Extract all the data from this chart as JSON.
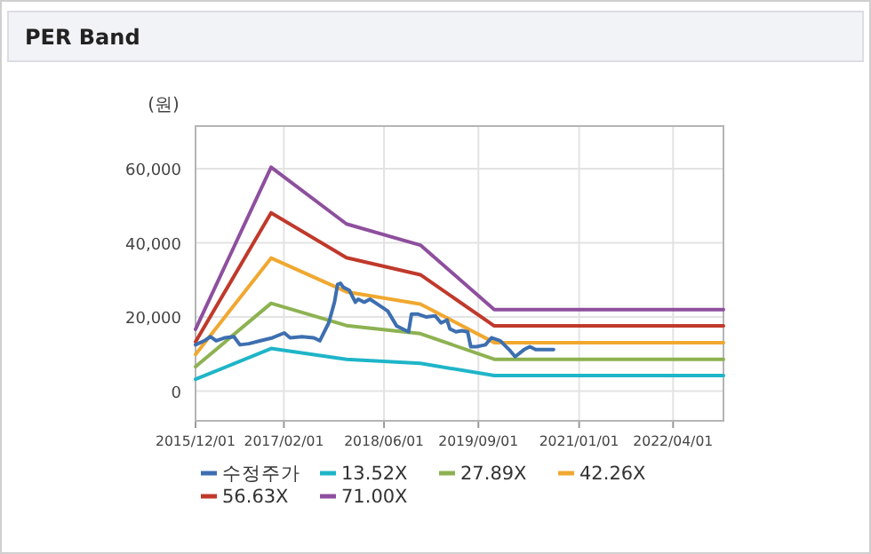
{
  "chart_data": {
    "type": "line",
    "title": "PER Band",
    "ylabel": "(원)",
    "xlim": [
      "2015-12-01",
      "2022-12-01"
    ],
    "xticks": [
      {
        "value": "2015-12-01",
        "label": "2015/12/01"
      },
      {
        "value": "2017-02-01",
        "label": "2017/02/01"
      },
      {
        "value": "2018-06-01",
        "label": "2018/06/01"
      },
      {
        "value": "2019-09-01",
        "label": "2019/09/01"
      },
      {
        "value": "2021-01-01",
        "label": "2021/01/01"
      },
      {
        "value": "2022-04-01",
        "label": "2022/04/01"
      }
    ],
    "ylim": [
      -8000,
      71500
    ],
    "yticks": [
      0,
      {
        "value": 20000,
        "label": "20,000"
      },
      {
        "value": 40000,
        "label": "40,000"
      },
      {
        "value": 60000,
        "label": "60,000"
      }
    ],
    "grid": true,
    "legend": "bottom",
    "marker": "none",
    "line_style": "solid",
    "series": [
      {
        "name": "수정주가",
        "color": "#3d6fb0",
        "x": [
          "2015-12-01",
          "2016-01-13",
          "2016-02-11",
          "2016-03-10",
          "2016-04-22",
          "2016-06-04",
          "2016-07-03",
          "2016-08-15",
          "2016-10-11",
          "2016-12-08",
          "2017-02-03",
          "2017-03-03",
          "2017-04-30",
          "2017-06-26",
          "2017-07-25",
          "2017-09-06",
          "2017-10-04",
          "2017-10-19",
          "2017-11-02",
          "2017-11-16",
          "2017-12-15",
          "2018-01-13",
          "2018-01-27",
          "2018-02-25",
          "2018-03-25",
          "2018-05-07",
          "2018-06-19",
          "2018-08-01",
          "2018-08-30",
          "2018-09-28",
          "2018-10-12",
          "2018-11-10",
          "2018-12-23",
          "2019-02-04",
          "2019-03-04",
          "2019-04-02",
          "2019-04-16",
          "2019-05-15",
          "2019-06-13",
          "2019-07-11",
          "2019-07-26",
          "2019-08-23",
          "2019-10-05",
          "2019-11-03",
          "2019-12-16",
          "2020-01-28",
          "2020-02-26",
          "2020-04-09",
          "2020-05-07",
          "2020-06-05",
          "2020-08-30"
        ],
        "values": [
          12500,
          13600,
          14700,
          13600,
          14400,
          14700,
          12500,
          12800,
          13600,
          14400,
          15700,
          14400,
          14700,
          14400,
          13600,
          18400,
          24000,
          28800,
          29100,
          28000,
          27200,
          24000,
          24800,
          24000,
          24800,
          23200,
          21600,
          17600,
          16800,
          16000,
          20800,
          20800,
          20000,
          20300,
          18400,
          19200,
          16800,
          16000,
          16300,
          16000,
          12000,
          12000,
          12500,
          14400,
          13600,
          11200,
          9300,
          11200,
          12000,
          11200,
          11200
        ]
      },
      {
        "name": "13.52X",
        "color": "#1fb5c8",
        "x": [
          "2015-12-01",
          "2016-12-01",
          "2017-12-01",
          "2018-11-24",
          "2019-11-17",
          "2022-12-01"
        ],
        "values": [
          3200,
          11500,
          8600,
          7500,
          4200,
          4200
        ]
      },
      {
        "name": "27.89X",
        "color": "#8db252",
        "x": [
          "2015-12-01",
          "2016-12-01",
          "2017-12-01",
          "2018-11-24",
          "2019-11-17",
          "2022-12-01"
        ],
        "values": [
          6600,
          23700,
          17700,
          15500,
          8600,
          8600
        ]
      },
      {
        "name": "42.26X",
        "color": "#f0a830",
        "x": [
          "2015-12-01",
          "2016-12-01",
          "2017-12-01",
          "2018-11-24",
          "2019-11-17",
          "2022-12-01"
        ],
        "values": [
          9900,
          35900,
          26800,
          23500,
          13100,
          13100
        ]
      },
      {
        "name": "56.63X",
        "color": "#c0392b",
        "x": [
          "2015-12-01",
          "2016-12-01",
          "2017-12-01",
          "2018-11-24",
          "2019-11-17",
          "2022-12-01"
        ],
        "values": [
          13300,
          48100,
          36000,
          31400,
          17600,
          17600
        ]
      },
      {
        "name": "71.00X",
        "color": "#8e4f9e",
        "x": [
          "2015-12-01",
          "2016-12-01",
          "2017-12-01",
          "2018-11-24",
          "2019-11-17",
          "2022-12-01"
        ],
        "values": [
          16700,
          60400,
          45100,
          39400,
          22000,
          22000
        ]
      }
    ]
  }
}
